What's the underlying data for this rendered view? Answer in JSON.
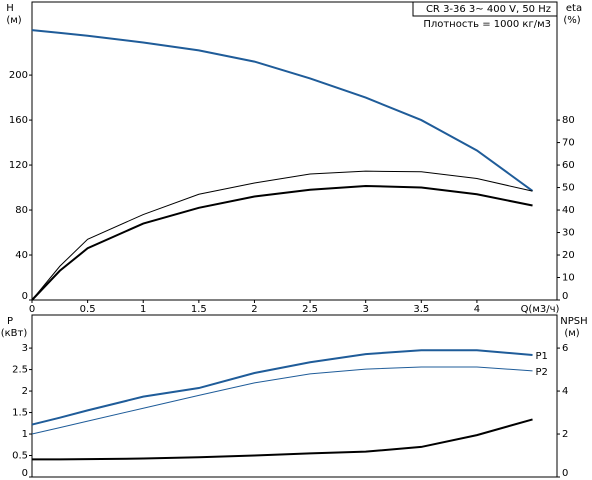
{
  "chart_data": [
    {
      "type": "line",
      "annotations": [
        "CR 3-36    3~ 400 V, 50 Hz",
        "Плотность = 1000 кг/м3"
      ],
      "ylabel": "H",
      "yunit": "(м)",
      "y2label": "eta",
      "y2unit": "(%)",
      "xlabel": "Q(м3/ч)",
      "x": [
        0,
        0.25,
        0.5,
        1,
        1.5,
        2,
        2.5,
        3,
        3.5,
        4,
        4.5
      ],
      "xlim": [
        0,
        4.72
      ],
      "xticks": [
        0,
        0.5,
        1,
        1.5,
        2,
        2.5,
        3,
        3.5,
        4
      ],
      "ylim": [
        0,
        265
      ],
      "yticks": [
        0,
        40,
        80,
        120,
        160,
        200
      ],
      "y2lim": [
        0,
        132.5
      ],
      "y2ticks": [
        0,
        10,
        20,
        30,
        40,
        50,
        60,
        70,
        80
      ],
      "series": [
        {
          "color": "#1f5c99",
          "line_width": 2,
          "values": [
            240,
            237.5,
            235,
            229,
            222,
            212,
            197,
            180,
            160,
            133,
            97
          ]
        },
        {
          "color": "#000000",
          "line_width": 1,
          "axis": "y2",
          "values": [
            0,
            15,
            27,
            38,
            47,
            52,
            56,
            57.3,
            57,
            54,
            48.4
          ]
        },
        {
          "color": "#000000",
          "line_width": 2,
          "axis": "y2",
          "values": [
            0,
            13,
            23,
            34,
            41,
            46,
            49,
            50.7,
            50,
            47,
            42
          ]
        }
      ]
    },
    {
      "type": "line",
      "ylabel": "P",
      "yunit": "(кВт)",
      "y2label": "NPSH",
      "y2unit": "(м)",
      "x": [
        0,
        0.25,
        0.5,
        1,
        1.5,
        2,
        2.5,
        3,
        3.5,
        4,
        4.5
      ],
      "xlim": [
        0,
        4.72
      ],
      "ylim": [
        0,
        3.77
      ],
      "yticks": [
        0,
        0.5,
        1,
        1.5,
        2,
        2.5,
        3
      ],
      "y2lim": [
        0,
        7.54
      ],
      "y2ticks": [
        0,
        2,
        4,
        6
      ],
      "series": [
        {
          "name": "P1",
          "color": "#1f5c99",
          "line_width": 2,
          "values": [
            1.22,
            1.38,
            1.55,
            1.87,
            2.07,
            2.42,
            2.67,
            2.86,
            2.95,
            2.95,
            2.84
          ]
        },
        {
          "name": "P2",
          "color": "#1f5c99",
          "line_width": 1,
          "values": [
            1.0,
            1.15,
            1.3,
            1.6,
            1.9,
            2.19,
            2.4,
            2.51,
            2.56,
            2.56,
            2.47
          ]
        },
        {
          "color": "#000000",
          "line_width": 2,
          "axis": "y2",
          "values": [
            0.82,
            0.82,
            0.83,
            0.86,
            0.92,
            1.0,
            1.1,
            1.18,
            1.4,
            1.95,
            2.68
          ]
        }
      ]
    }
  ]
}
